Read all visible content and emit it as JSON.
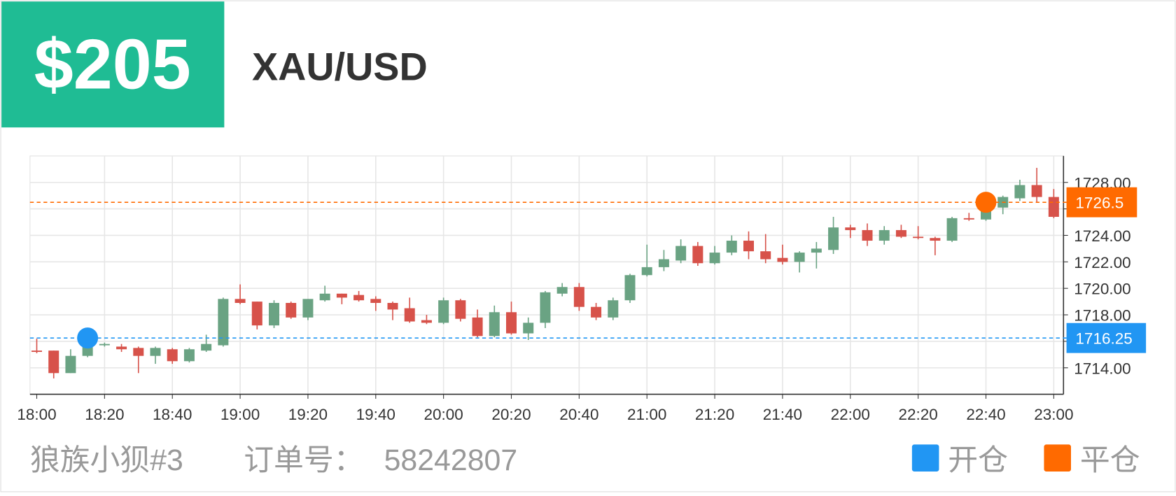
{
  "header": {
    "profit": "$205",
    "symbol": "XAU/USD"
  },
  "footer": {
    "user": "狼族小狈#3",
    "order_label": "订单号：",
    "order_no": "58242807"
  },
  "chart_data": {
    "type": "candlestick",
    "categories": [
      "18:00",
      null,
      null,
      null,
      "18:20",
      null,
      null,
      null,
      "18:40",
      null,
      null,
      null,
      "19:00",
      null,
      null,
      null,
      "19:20",
      null,
      null,
      null,
      "19:40",
      null,
      null,
      null,
      "20:00",
      null,
      null,
      null,
      "20:20",
      null,
      null,
      null,
      "20:40",
      null,
      null,
      null,
      "21:00",
      null,
      null,
      null,
      "21:20",
      null,
      null,
      null,
      "21:40",
      null,
      null,
      null,
      "22:00",
      null,
      null,
      null,
      "22:20",
      null,
      null,
      null,
      "22:40",
      null,
      null,
      null,
      "23:00"
    ],
    "open": [
      1715.3,
      1715.3,
      1713.6,
      1714.9,
      1715.7,
      1715.6,
      1715.5,
      1714.9,
      1715.4,
      1714.5,
      1715.3,
      1715.7,
      1719.2,
      1719.0,
      1717.2,
      1718.9,
      1717.8,
      1719.1,
      1719.6,
      1719.5,
      1719.2,
      1718.9,
      1718.5,
      1717.6,
      1717.4,
      1719.1,
      1717.8,
      1716.4,
      1718.2,
      1716.6,
      1717.4,
      1719.6,
      1720.1,
      1718.6,
      1717.8,
      1719.1,
      1721.0,
      1721.6,
      1722.1,
      1723.2,
      1721.9,
      1722.7,
      1723.6,
      1722.8,
      1722.3,
      1722.0,
      1722.7,
      1722.9,
      1724.6,
      1724.4,
      1723.6,
      1724.4,
      1723.9,
      1723.8,
      1723.6,
      1725.3,
      1725.2,
      1726.1,
      1726.8,
      1727.8,
      1726.9
    ],
    "high": [
      1716.2,
      1715.3,
      1715.4,
      1716.4,
      1715.9,
      1715.8,
      1715.6,
      1715.6,
      1715.5,
      1715.5,
      1716.5,
      1719.3,
      1720.3,
      1719.0,
      1719.1,
      1719.0,
      1719.2,
      1720.2,
      1719.6,
      1719.8,
      1719.4,
      1719.0,
      1719.3,
      1718.0,
      1719.3,
      1719.2,
      1718.4,
      1718.7,
      1719.0,
      1717.8,
      1719.8,
      1720.4,
      1720.4,
      1718.9,
      1719.3,
      1721.1,
      1723.3,
      1722.9,
      1723.7,
      1723.5,
      1723.2,
      1724.0,
      1724.3,
      1724.1,
      1723.3,
      1722.8,
      1723.5,
      1725.4,
      1724.8,
      1724.9,
      1724.7,
      1724.8,
      1724.7,
      1723.9,
      1725.4,
      1725.7,
      1726.6,
      1727.0,
      1728.2,
      1729.1,
      1727.5
    ],
    "low": [
      1715.1,
      1713.2,
      1713.6,
      1714.8,
      1715.6,
      1715.2,
      1713.6,
      1714.3,
      1714.3,
      1714.4,
      1715.2,
      1715.6,
      1718.8,
      1716.9,
      1717.0,
      1717.7,
      1717.6,
      1719.0,
      1718.8,
      1719.0,
      1718.3,
      1717.6,
      1717.4,
      1717.3,
      1717.3,
      1717.5,
      1716.3,
      1716.3,
      1716.5,
      1716.1,
      1717.0,
      1719.4,
      1718.3,
      1717.6,
      1717.6,
      1718.9,
      1720.9,
      1721.3,
      1721.9,
      1721.7,
      1721.8,
      1722.5,
      1722.2,
      1721.9,
      1721.8,
      1721.2,
      1721.5,
      1722.6,
      1723.8,
      1723.2,
      1723.3,
      1723.8,
      1723.7,
      1722.5,
      1723.5,
      1725.1,
      1725.1,
      1725.6,
      1726.6,
      1726.5,
      1725.3
    ],
    "close": [
      1715.2,
      1713.6,
      1714.9,
      1715.8,
      1715.8,
      1715.4,
      1714.9,
      1715.5,
      1714.5,
      1715.4,
      1715.8,
      1719.2,
      1718.9,
      1717.2,
      1718.9,
      1717.8,
      1719.2,
      1719.6,
      1719.3,
      1719.1,
      1718.9,
      1718.4,
      1717.5,
      1717.4,
      1719.1,
      1717.7,
      1716.4,
      1718.2,
      1716.6,
      1717.4,
      1719.7,
      1720.1,
      1718.6,
      1717.8,
      1719.1,
      1721.0,
      1721.6,
      1722.2,
      1723.2,
      1721.9,
      1722.7,
      1723.6,
      1722.8,
      1722.2,
      1722.0,
      1722.7,
      1723.0,
      1724.6,
      1724.4,
      1723.6,
      1724.4,
      1723.9,
      1723.8,
      1723.6,
      1725.3,
      1725.2,
      1726.4,
      1726.9,
      1727.8,
      1726.9,
      1725.4
    ],
    "up_color": "#6aa383",
    "down_color": "#d7524a",
    "ylim": [
      1712,
      1730
    ],
    "yticks": [
      {
        "value": 1714,
        "label": "1714.00"
      },
      {
        "value": 1716,
        "label": "1716.00"
      },
      {
        "value": 1718,
        "label": "1718.00"
      },
      {
        "value": 1720,
        "label": "1720.00"
      },
      {
        "value": 1722,
        "label": "1722.00"
      },
      {
        "value": 1724,
        "label": "1724.00"
      },
      {
        "value": 1726,
        "label": "1726.00"
      },
      {
        "value": 1728,
        "label": "1728.00"
      }
    ],
    "grid": true,
    "markers": [
      {
        "name": "开仓",
        "color": "#2196f3",
        "at": 3,
        "value": 1716.25
      },
      {
        "name": "平仓",
        "color": "#ff6a00",
        "at": 56,
        "value": 1726.5
      }
    ]
  }
}
